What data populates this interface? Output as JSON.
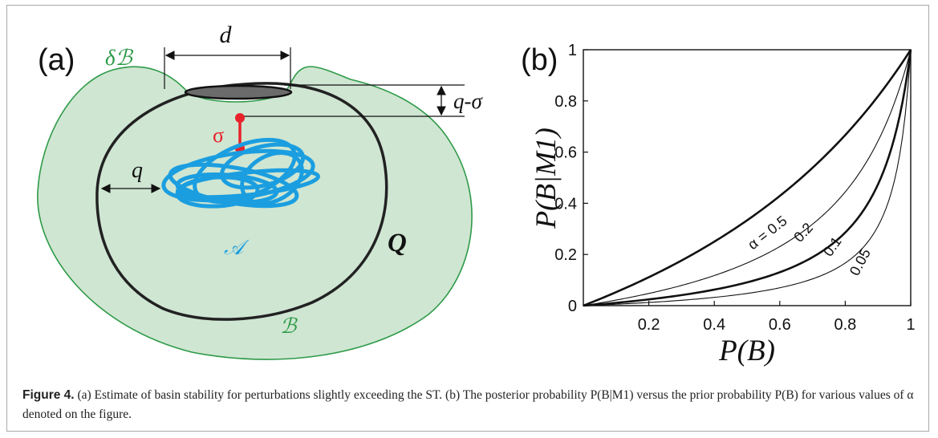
{
  "panel_a": {
    "label": "(a)",
    "labels": {
      "d": "d",
      "q_minus_sigma": "q-σ",
      "sigma": "σ",
      "q": "q",
      "Q": "Q",
      "A": "𝒜",
      "delta_B": "δℬ",
      "B": "ℬ"
    },
    "colors": {
      "basin_fill": "#cfe6d2",
      "basin_stroke": "#2e9a48",
      "attractor": "#1b9ee0",
      "sigma": "#e8212b",
      "curve": "#222222",
      "disc": "#6b6b6b"
    }
  },
  "panel_b": {
    "label": "(b)",
    "curve_labels": [
      "α = 0.5",
      "0.2",
      "0.1",
      "0.05"
    ]
  },
  "chart_data": {
    "type": "line",
    "title": "",
    "xlabel": "P(B)",
    "ylabel": "P(B|M1)",
    "xlim": [
      0,
      1
    ],
    "ylim": [
      0,
      1
    ],
    "xticks": [
      "0.2",
      "0.4",
      "0.6",
      "0.8",
      "1"
    ],
    "yticks": [
      "0",
      "0.2",
      "0.4",
      "0.6",
      "0.8",
      "1"
    ],
    "grid": false,
    "series": [
      {
        "name": "α = 0.5",
        "alpha": 0.5,
        "x": [
          0,
          0.1,
          0.2,
          0.3,
          0.4,
          0.5,
          0.6,
          0.7,
          0.8,
          0.9,
          1
        ],
        "y": [
          0,
          0.05,
          0.11,
          0.18,
          0.26,
          0.33,
          0.43,
          0.54,
          0.67,
          0.82,
          1
        ]
      },
      {
        "name": "0.2",
        "alpha": 0.2,
        "x": [
          0,
          0.1,
          0.2,
          0.3,
          0.4,
          0.5,
          0.6,
          0.7,
          0.8,
          0.9,
          1
        ],
        "y": [
          0,
          0.02,
          0.05,
          0.08,
          0.12,
          0.17,
          0.23,
          0.32,
          0.44,
          0.64,
          1
        ]
      },
      {
        "name": "0.1",
        "alpha": 0.1,
        "x": [
          0,
          0.1,
          0.2,
          0.3,
          0.4,
          0.5,
          0.6,
          0.7,
          0.8,
          0.9,
          1
        ],
        "y": [
          0,
          0.01,
          0.025,
          0.045,
          0.07,
          0.1,
          0.14,
          0.2,
          0.3,
          0.5,
          1
        ]
      },
      {
        "name": "0.05",
        "alpha": 0.05,
        "x": [
          0,
          0.1,
          0.2,
          0.3,
          0.4,
          0.5,
          0.6,
          0.7,
          0.8,
          0.9,
          1
        ],
        "y": [
          0,
          0.006,
          0.013,
          0.023,
          0.036,
          0.052,
          0.075,
          0.11,
          0.17,
          0.32,
          1
        ]
      }
    ]
  },
  "caption": {
    "figure_label": "Figure 4.",
    "text": " (a) Estimate of basin stability for perturbations slightly exceeding the ST. (b) The posterior probability P(B|M1) versus the prior probability P(B) for various values of α denoted on the figure."
  }
}
